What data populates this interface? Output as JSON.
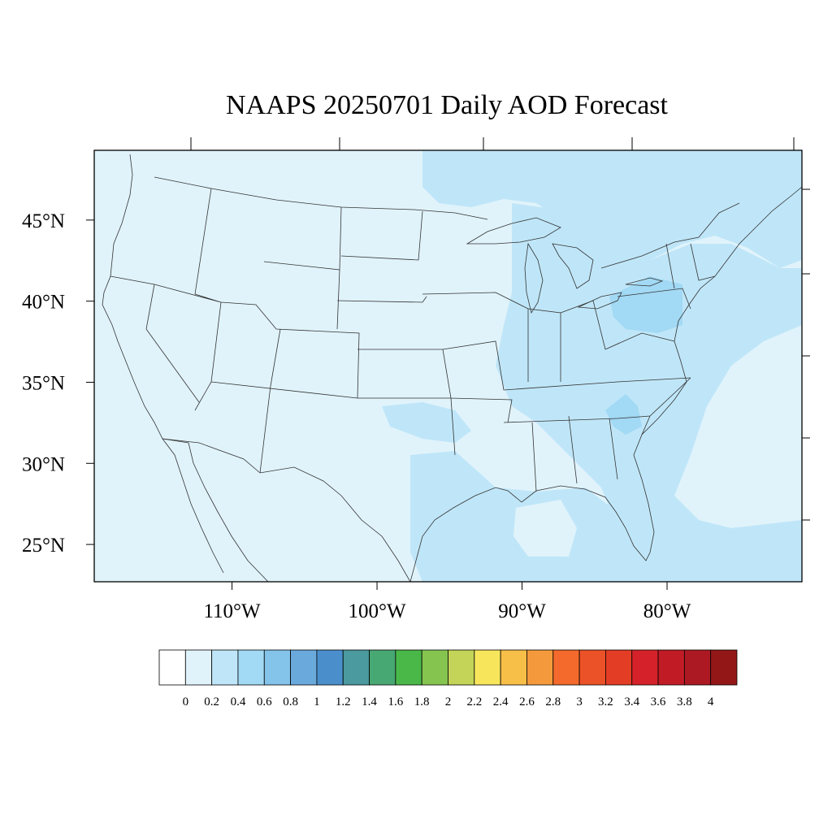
{
  "title": "NAAPS 20250701 Daily AOD Forecast",
  "map": {
    "lat_labels": [
      {
        "lat": 45,
        "text": "45°N"
      },
      {
        "lat": 40,
        "text": "40°N"
      },
      {
        "lat": 35,
        "text": "35°N"
      },
      {
        "lat": 30,
        "text": "30°N"
      },
      {
        "lat": 25,
        "text": "25°N"
      }
    ],
    "lon_labels": [
      {
        "lon": -110,
        "text": "110°W"
      },
      {
        "lon": -100,
        "text": "100°W"
      },
      {
        "lon": -90,
        "text": "90°W"
      },
      {
        "lon": -80,
        "text": "80°W"
      }
    ],
    "extent": {
      "lon_min": -119.5,
      "lon_max": -70.7,
      "lat_min": 22.7,
      "lat_max": 49.3
    },
    "background_class_color": "#e0f3fb",
    "aod_regions": [
      {
        "name": "north-atlantic-plume",
        "aod": "0.2-0.4",
        "color": "#bfe6f8"
      },
      {
        "name": "great-lakes-band",
        "aod": "0.2-0.4",
        "color": "#bfe6f8"
      },
      {
        "name": "mid-atlantic",
        "aod": "0.4-0.6",
        "color": "#a2d9f4"
      },
      {
        "name": "southeast-coast",
        "aod": "0.4-0.6",
        "color": "#a2d9f4"
      },
      {
        "name": "gulf-of-mexico",
        "aod": "0.2-0.4",
        "color": "#bfe6f8"
      },
      {
        "name": "southern-plains",
        "aod": "0.2-0.4",
        "color": "#bfe6f8"
      }
    ]
  },
  "colorbar": {
    "colors": [
      "#ffffff",
      "#e0f3fb",
      "#bfe6f8",
      "#a2d9f4",
      "#84c3ea",
      "#6aa9dc",
      "#4a8fcc",
      "#4a9a9f",
      "#48a873",
      "#4ab848",
      "#86c450",
      "#c3d458",
      "#f7e65c",
      "#f8bf48",
      "#f59a3c",
      "#f36a2c",
      "#ec5228",
      "#e43d26",
      "#d5222a",
      "#c11c26",
      "#ad1923",
      "#941718"
    ],
    "labels": [
      "0",
      "0.2",
      "0.4",
      "0.6",
      "0.8",
      "1",
      "1.2",
      "1.4",
      "1.6",
      "1.8",
      "2",
      "2.2",
      "2.4",
      "2.6",
      "2.8",
      "3",
      "3.2",
      "3.4",
      "3.6",
      "3.8",
      "4"
    ]
  }
}
